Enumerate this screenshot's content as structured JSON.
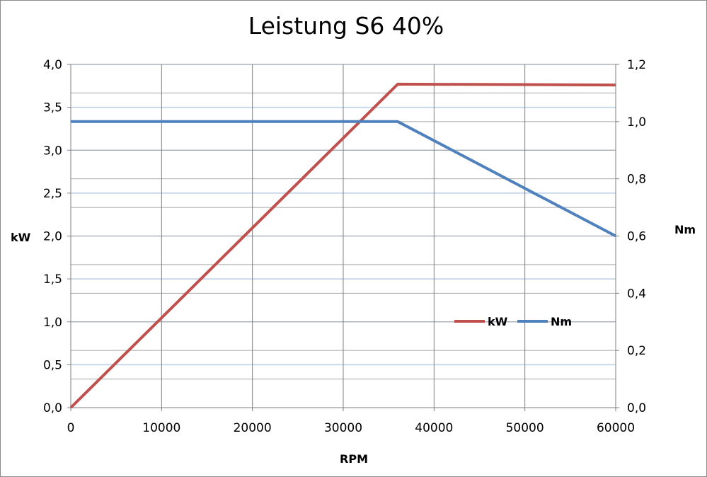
{
  "chart_data": {
    "type": "line",
    "title": "Leistung S6 40%",
    "xlabel": "RPM",
    "ylabel": "kW",
    "y2label": "Nm",
    "xlim": [
      0,
      60000
    ],
    "ylim": [
      0,
      4.0
    ],
    "y2lim": [
      0,
      1.2
    ],
    "x_ticks": [
      "0",
      "10000",
      "20000",
      "30000",
      "40000",
      "50000",
      "60000"
    ],
    "y_ticks": [
      "0,0",
      "0,5",
      "1,0",
      "1,5",
      "2,0",
      "2,5",
      "3,0",
      "3,5",
      "4,0"
    ],
    "y2_ticks": [
      "0,0",
      "0,2",
      "0,4",
      "0,6",
      "0,8",
      "1,0",
      "1,2"
    ],
    "x_tick_values": [
      0,
      10000,
      20000,
      30000,
      40000,
      50000,
      60000
    ],
    "y_tick_values": [
      0,
      0.5,
      1.0,
      1.5,
      2.0,
      2.5,
      3.0,
      3.5,
      4.0
    ],
    "y2_tick_values": [
      0,
      0.2,
      0.4,
      0.6,
      0.8,
      1.0,
      1.2
    ],
    "grid": true,
    "legend_position": "right",
    "series": [
      {
        "name": "kW",
        "axis": "left",
        "color": "#c0504d",
        "x": [
          0,
          36000,
          60000
        ],
        "y": [
          0,
          3.77,
          3.76
        ]
      },
      {
        "name": "Nm",
        "axis": "right",
        "color": "#4f81bd",
        "x": [
          0,
          36000,
          60000
        ],
        "y": [
          1.0,
          1.0,
          0.6
        ]
      }
    ]
  }
}
